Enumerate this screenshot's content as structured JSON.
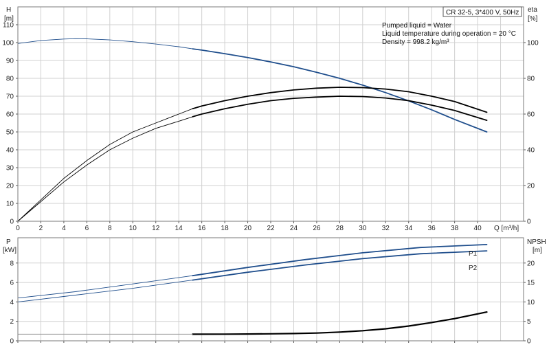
{
  "chart_data": [
    {
      "type": "line",
      "panel": "pump-curve",
      "title_box": "CR 32-5, 3*400 V, 50Hz",
      "info_lines": [
        "Pumped liquid = Water",
        "Liquid temperature during operation = 20 °C",
        "Density = 998.2 kg/m³"
      ],
      "y_label_left_1": "H",
      "y_label_left_2": "[m]",
      "y_label_right_1": "eta",
      "y_label_right_2": "[%]",
      "x_label": "Q [m³/h]",
      "xlim": [
        0,
        44
      ],
      "ylim_left": [
        0,
        120
      ],
      "ylim_right": [
        0,
        120
      ],
      "x_ticks": [
        "0",
        "2",
        "4",
        "6",
        "8",
        "10",
        "12",
        "14",
        "16",
        "18",
        "20",
        "22",
        "24",
        "26",
        "28",
        "30",
        "32",
        "34",
        "36",
        "38",
        "40"
      ],
      "y_ticks_left": [
        "0",
        "10",
        "20",
        "30",
        "40",
        "50",
        "60",
        "70",
        "80",
        "90",
        "100",
        "110"
      ],
      "y_ticks_right": [
        "0",
        "20",
        "40",
        "60",
        "80",
        "100"
      ],
      "grid": true,
      "highlight_from_x": 15.2,
      "series": [
        {
          "axis": "left",
          "color": "#1f4e8c",
          "x": [
            0,
            2,
            4,
            5,
            6,
            8,
            10,
            12,
            14,
            15.2,
            16,
            18,
            20,
            22,
            24,
            26,
            28,
            30,
            32,
            34,
            36,
            38,
            40.8
          ],
          "y": [
            99.5,
            101.2,
            102.0,
            102.2,
            102.1,
            101.5,
            100.5,
            99.2,
            97.7,
            96.5,
            95.8,
            93.8,
            91.6,
            89.2,
            86.5,
            83.4,
            80.0,
            76.2,
            72.0,
            67.4,
            62.4,
            57.0,
            50.0
          ]
        },
        {
          "axis": "right",
          "color": "#000000",
          "x": [
            0,
            2,
            4,
            6,
            8,
            10,
            12,
            14,
            15.2,
            16,
            18,
            20,
            22,
            24,
            26,
            28,
            30,
            32,
            34,
            36,
            38,
            40.8
          ],
          "y": [
            0,
            12,
            24,
            34,
            43,
            50,
            55,
            60,
            63,
            64.5,
            67.5,
            70,
            72,
            73.5,
            74.5,
            75,
            74.8,
            74,
            72.5,
            70,
            67,
            61
          ]
        },
        {
          "axis": "right",
          "color": "#000000",
          "x": [
            0,
            2,
            4,
            6,
            8,
            10,
            12,
            14,
            15.2,
            16,
            18,
            20,
            22,
            24,
            26,
            28,
            30,
            32,
            34,
            36,
            38,
            40.8
          ],
          "y": [
            0,
            11,
            22,
            31.5,
            40,
            46.5,
            52,
            56,
            58.5,
            60,
            63,
            65.5,
            67.5,
            68.8,
            69.5,
            70,
            69.8,
            69,
            67.5,
            65,
            62,
            56.5
          ]
        }
      ]
    },
    {
      "type": "line",
      "panel": "power-npsh",
      "y_label_left_1": "P",
      "y_label_left_2": "[kW]",
      "y_label_right_1": "NPSH",
      "y_label_right_2": "[m]",
      "xlim": [
        0,
        44
      ],
      "ylim_left": [
        0,
        10.6
      ],
      "ylim_right": [
        0,
        26.5
      ],
      "y_ticks_left": [
        "0",
        "2",
        "4",
        "6",
        "8"
      ],
      "y_ticks_right": [
        "0",
        "5",
        "10",
        "15",
        "20"
      ],
      "grid": true,
      "highlight_from_x": 15.2,
      "series": [
        {
          "name": "P1",
          "axis": "left",
          "color": "#1f4e8c",
          "x": [
            0,
            5,
            10,
            15.2,
            20,
            25,
            30,
            35,
            40.8
          ],
          "y": [
            4.4,
            5.05,
            5.85,
            6.7,
            7.55,
            8.35,
            9.05,
            9.6,
            9.9
          ]
        },
        {
          "name": "P2",
          "axis": "left",
          "color": "#1f4e8c",
          "x": [
            0,
            5,
            10,
            15.2,
            20,
            25,
            30,
            35,
            40.8
          ],
          "y": [
            4.0,
            4.7,
            5.4,
            6.25,
            7.05,
            7.8,
            8.45,
            8.95,
            9.25
          ]
        },
        {
          "axis": "right",
          "color": "#000000",
          "x": [
            15.2,
            18,
            20,
            22,
            24,
            26,
            28,
            30,
            32,
            34,
            36,
            38,
            40.8
          ],
          "y": [
            1.7,
            1.72,
            1.75,
            1.8,
            1.88,
            2.0,
            2.25,
            2.6,
            3.1,
            3.8,
            4.7,
            5.7,
            7.4
          ]
        },
        {
          "axis": "right",
          "color": "#999999",
          "x": [
            0,
            15.2
          ],
          "y": [
            1.7,
            1.7
          ]
        }
      ]
    }
  ]
}
